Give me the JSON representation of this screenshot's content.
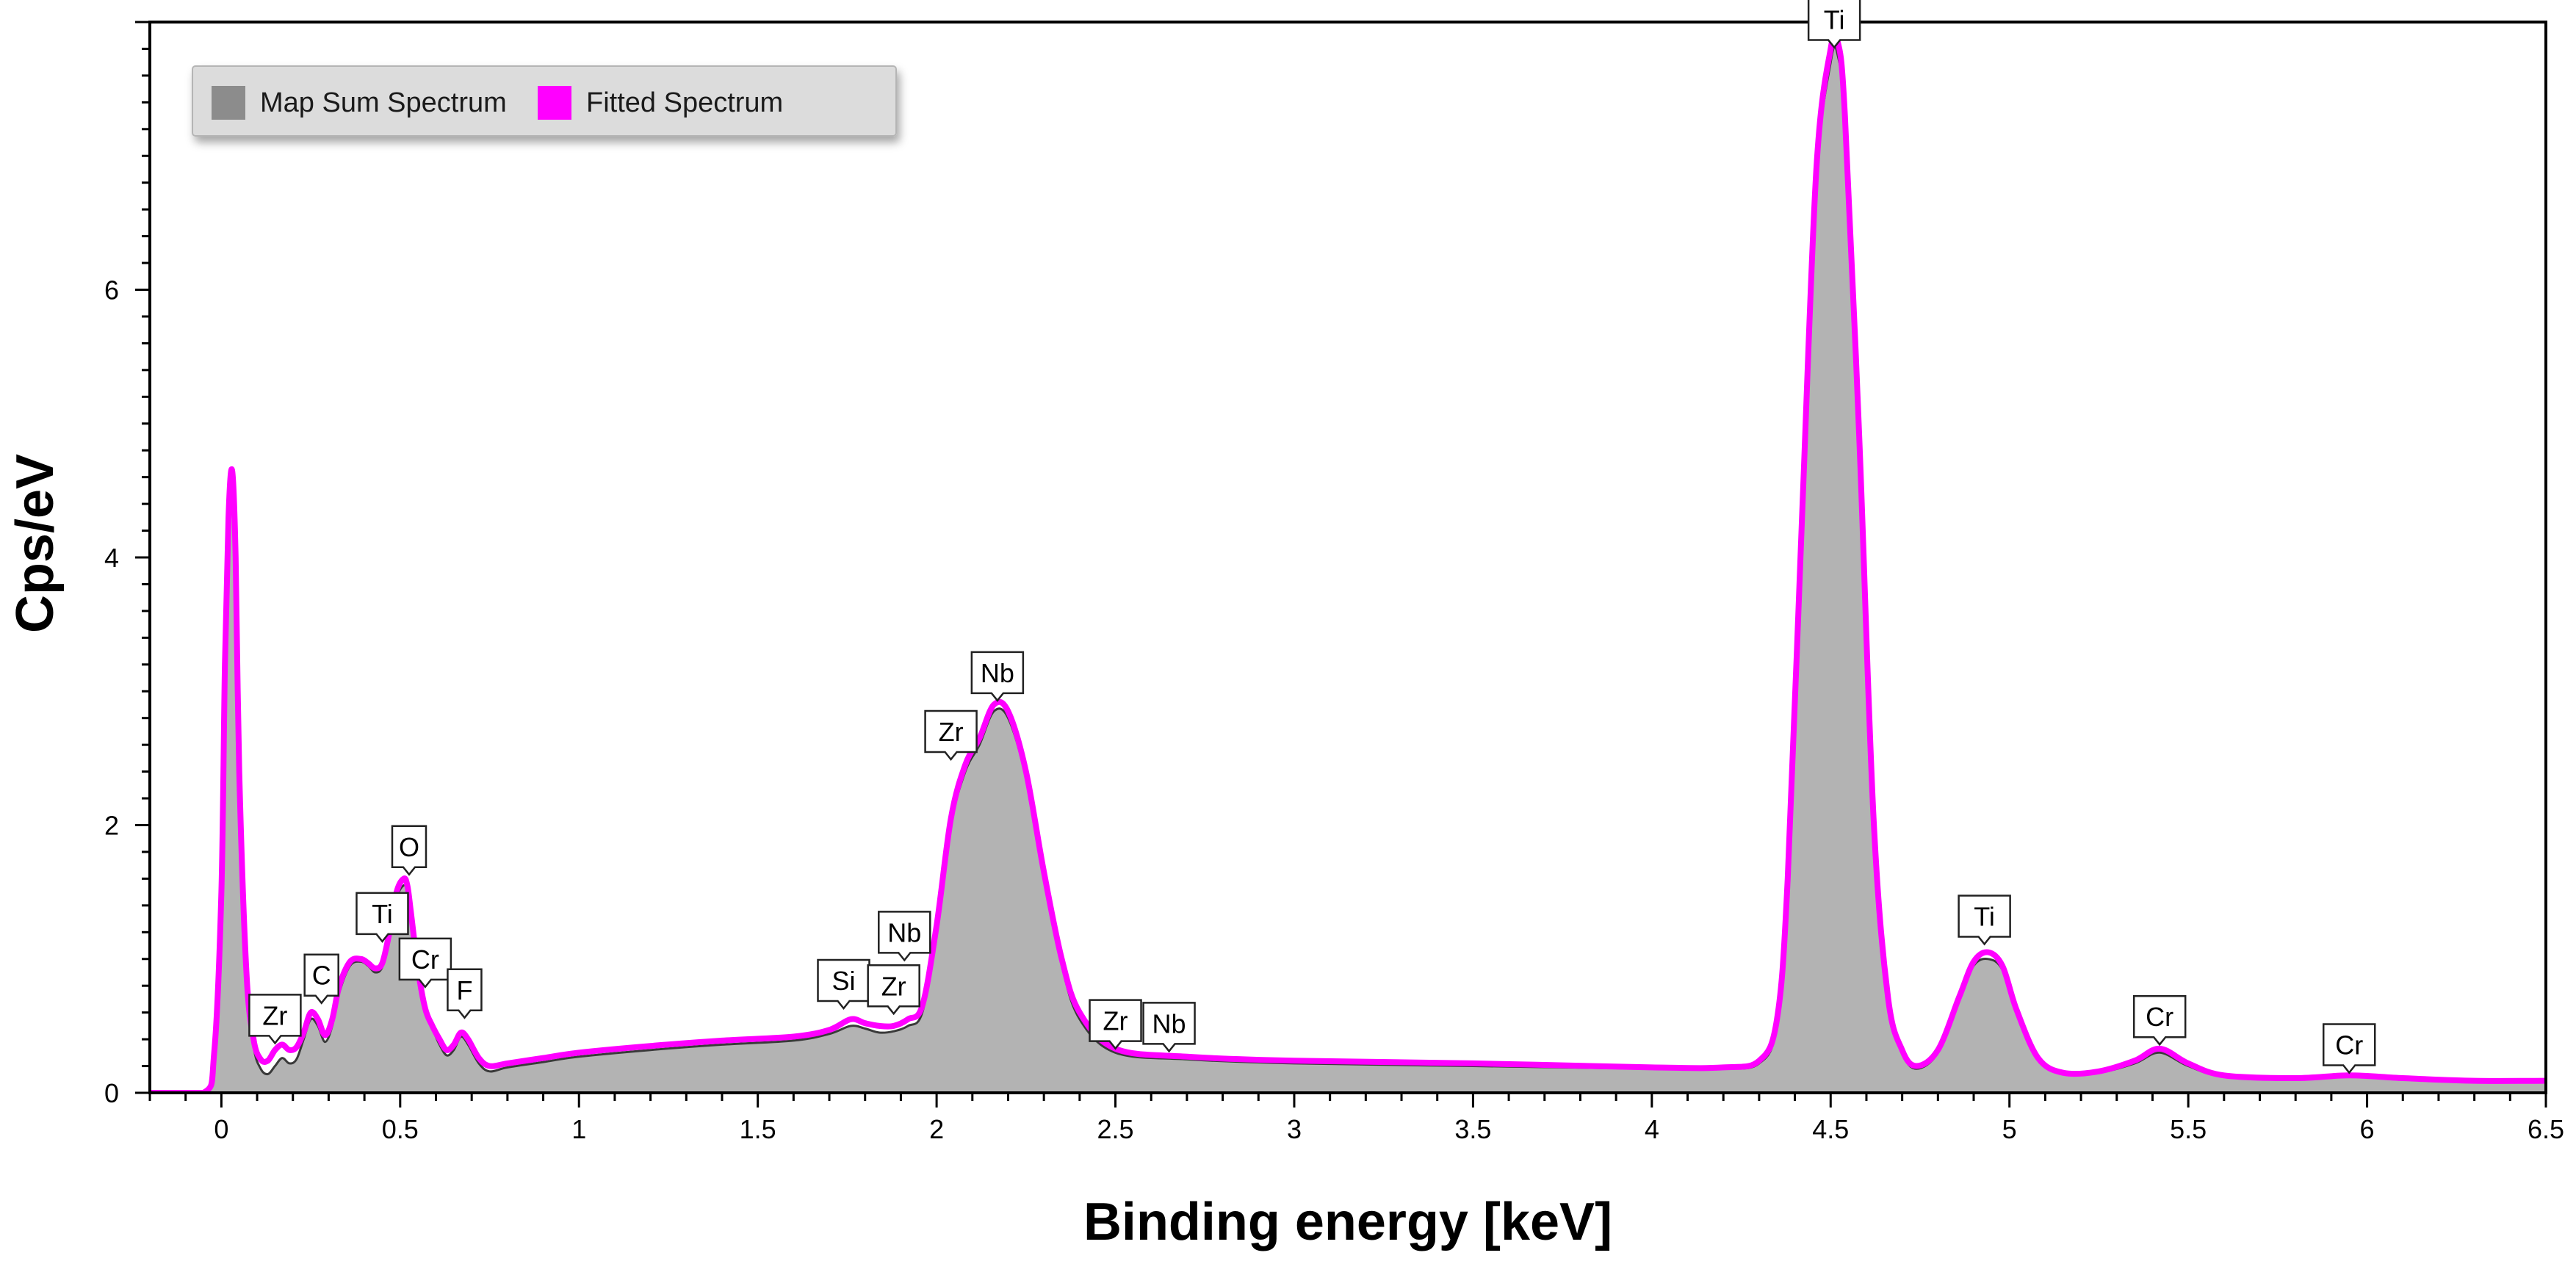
{
  "chart_data": {
    "type": "area",
    "title": "",
    "xlabel": "Binding energy [keV]",
    "ylabel": "Cps/eV",
    "xlim": [
      -0.2,
      6.5
    ],
    "ylim": [
      0,
      8
    ],
    "x_ticks": [
      {
        "value": 0,
        "label": "0"
      },
      {
        "value": 0.5,
        "label": "0.5"
      },
      {
        "value": 1,
        "label": "1"
      },
      {
        "value": 1.5,
        "label": "1.5"
      },
      {
        "value": 2,
        "label": "2"
      },
      {
        "value": 2.5,
        "label": "2.5"
      },
      {
        "value": 3,
        "label": "3"
      },
      {
        "value": 3.5,
        "label": "3.5"
      },
      {
        "value": 4,
        "label": "4"
      },
      {
        "value": 4.5,
        "label": "4.5"
      },
      {
        "value": 5,
        "label": "5"
      },
      {
        "value": 5.5,
        "label": "5.5"
      },
      {
        "value": 6,
        "label": "6"
      },
      {
        "value": 6.5,
        "label": "6.5"
      }
    ],
    "y_ticks": [
      {
        "value": 0,
        "label": "0"
      },
      {
        "value": 2,
        "label": "2"
      },
      {
        "value": 4,
        "label": "4"
      },
      {
        "value": 6,
        "label": "6"
      }
    ],
    "legend": {
      "placement": "top-left",
      "entries": [
        {
          "name": "Map Sum Spectrum",
          "color": "#8c8c8c"
        },
        {
          "name": "Fitted Spectrum",
          "color": "#ff00ff"
        }
      ]
    },
    "series": [
      {
        "name": "Map Sum Spectrum",
        "style": "filled-area",
        "fill_color": "#b3b3b3",
        "line_color": "#3a3a3a",
        "x": [
          -0.2,
          -0.05,
          -0.02,
          0.0,
          0.01,
          0.02,
          0.03,
          0.04,
          0.05,
          0.07,
          0.09,
          0.11,
          0.13,
          0.15,
          0.17,
          0.19,
          0.21,
          0.23,
          0.25,
          0.27,
          0.29,
          0.31,
          0.33,
          0.36,
          0.39,
          0.41,
          0.43,
          0.45,
          0.47,
          0.49,
          0.51,
          0.52,
          0.53,
          0.55,
          0.57,
          0.59,
          0.61,
          0.63,
          0.65,
          0.67,
          0.69,
          0.72,
          0.75,
          0.8,
          0.9,
          1.0,
          1.2,
          1.4,
          1.6,
          1.7,
          1.76,
          1.8,
          1.84,
          1.88,
          1.92,
          1.96,
          2.0,
          2.04,
          2.08,
          2.12,
          2.16,
          2.2,
          2.25,
          2.3,
          2.35,
          2.4,
          2.5,
          2.7,
          3.0,
          3.5,
          4.0,
          4.2,
          4.3,
          4.35,
          4.38,
          4.42,
          4.46,
          4.5,
          4.52,
          4.54,
          4.58,
          4.62,
          4.66,
          4.7,
          4.74,
          4.8,
          4.86,
          4.9,
          4.94,
          4.98,
          5.02,
          5.08,
          5.15,
          5.25,
          5.35,
          5.42,
          5.5,
          5.6,
          5.8,
          5.95,
          6.1,
          6.3,
          6.5
        ],
        "y": [
          0,
          0,
          0.3,
          1.5,
          3.2,
          4.3,
          4.65,
          4.0,
          2.4,
          0.9,
          0.35,
          0.18,
          0.14,
          0.2,
          0.26,
          0.22,
          0.25,
          0.4,
          0.55,
          0.5,
          0.38,
          0.5,
          0.75,
          0.95,
          0.98,
          0.95,
          0.9,
          0.94,
          1.15,
          1.45,
          1.55,
          1.5,
          1.3,
          0.88,
          0.6,
          0.48,
          0.36,
          0.28,
          0.32,
          0.42,
          0.36,
          0.22,
          0.16,
          0.19,
          0.23,
          0.27,
          0.32,
          0.36,
          0.39,
          0.44,
          0.5,
          0.48,
          0.45,
          0.46,
          0.5,
          0.6,
          1.2,
          2.0,
          2.4,
          2.6,
          2.85,
          2.8,
          2.35,
          1.6,
          0.95,
          0.55,
          0.3,
          0.25,
          0.22,
          0.2,
          0.18,
          0.18,
          0.22,
          0.5,
          1.5,
          4.2,
          6.8,
          7.7,
          7.75,
          7.2,
          4.8,
          2.0,
          0.7,
          0.3,
          0.18,
          0.3,
          0.7,
          0.95,
          1.0,
          0.92,
          0.6,
          0.25,
          0.14,
          0.15,
          0.22,
          0.3,
          0.2,
          0.12,
          0.1,
          0.12,
          0.1,
          0.08,
          0.08
        ]
      },
      {
        "name": "Fitted Spectrum",
        "style": "line",
        "line_color": "#ff00ff",
        "x": [
          -0.2,
          -0.05,
          -0.02,
          0.0,
          0.01,
          0.02,
          0.03,
          0.04,
          0.05,
          0.07,
          0.09,
          0.11,
          0.13,
          0.15,
          0.17,
          0.19,
          0.21,
          0.23,
          0.25,
          0.27,
          0.29,
          0.31,
          0.33,
          0.36,
          0.39,
          0.41,
          0.43,
          0.45,
          0.47,
          0.49,
          0.51,
          0.52,
          0.53,
          0.55,
          0.57,
          0.59,
          0.61,
          0.63,
          0.65,
          0.67,
          0.69,
          0.72,
          0.75,
          0.8,
          0.9,
          1.0,
          1.2,
          1.4,
          1.6,
          1.7,
          1.76,
          1.8,
          1.84,
          1.88,
          1.92,
          1.96,
          2.0,
          2.04,
          2.08,
          2.12,
          2.16,
          2.2,
          2.25,
          2.3,
          2.35,
          2.4,
          2.5,
          2.7,
          3.0,
          3.5,
          4.0,
          4.2,
          4.3,
          4.35,
          4.38,
          4.42,
          4.46,
          4.5,
          4.52,
          4.54,
          4.58,
          4.62,
          4.66,
          4.7,
          4.74,
          4.8,
          4.86,
          4.9,
          4.94,
          4.98,
          5.02,
          5.08,
          5.15,
          5.25,
          5.35,
          5.42,
          5.5,
          5.6,
          5.8,
          5.95,
          6.1,
          6.3,
          6.5
        ],
        "y": [
          0,
          0,
          0.3,
          1.5,
          3.2,
          4.3,
          4.65,
          4.0,
          2.4,
          0.9,
          0.4,
          0.25,
          0.24,
          0.32,
          0.36,
          0.32,
          0.34,
          0.45,
          0.6,
          0.55,
          0.43,
          0.55,
          0.8,
          0.98,
          1.0,
          0.97,
          0.93,
          0.97,
          1.2,
          1.5,
          1.6,
          1.55,
          1.35,
          0.92,
          0.63,
          0.5,
          0.4,
          0.32,
          0.36,
          0.45,
          0.4,
          0.26,
          0.2,
          0.22,
          0.26,
          0.3,
          0.35,
          0.39,
          0.42,
          0.47,
          0.55,
          0.52,
          0.5,
          0.5,
          0.55,
          0.65,
          1.25,
          2.05,
          2.45,
          2.65,
          2.9,
          2.85,
          2.4,
          1.65,
          1.0,
          0.6,
          0.33,
          0.27,
          0.24,
          0.22,
          0.19,
          0.19,
          0.24,
          0.55,
          1.6,
          4.3,
          6.9,
          7.8,
          7.85,
          7.3,
          4.9,
          2.05,
          0.72,
          0.32,
          0.2,
          0.32,
          0.72,
          0.98,
          1.05,
          0.95,
          0.62,
          0.26,
          0.15,
          0.16,
          0.24,
          0.33,
          0.22,
          0.13,
          0.11,
          0.13,
          0.11,
          0.09,
          0.09
        ]
      }
    ],
    "peak_labels": [
      {
        "label": "Ti",
        "x": 4.51,
        "y": 7.8
      },
      {
        "label": "Nb",
        "x": 2.17,
        "y": 2.92
      },
      {
        "label": "Zr",
        "x": 2.04,
        "y": 2.48
      },
      {
        "label": "O",
        "x": 0.525,
        "y": 1.62
      },
      {
        "label": "Ti",
        "x": 0.45,
        "y": 1.12
      },
      {
        "label": "Cr",
        "x": 0.57,
        "y": 0.78
      },
      {
        "label": "F",
        "x": 0.68,
        "y": 0.55
      },
      {
        "label": "C",
        "x": 0.28,
        "y": 0.66
      },
      {
        "label": "Zr",
        "x": 0.15,
        "y": 0.36
      },
      {
        "label": "Si",
        "x": 1.74,
        "y": 0.62
      },
      {
        "label": "Zr",
        "x": 1.88,
        "y": 0.58
      },
      {
        "label": "Nb",
        "x": 1.91,
        "y": 0.98
      },
      {
        "label": "Zr",
        "x": 2.5,
        "y": 0.32
      },
      {
        "label": "Nb",
        "x": 2.65,
        "y": 0.3
      },
      {
        "label": "Ti",
        "x": 4.93,
        "y": 1.1
      },
      {
        "label": "Cr",
        "x": 5.42,
        "y": 0.35
      },
      {
        "label": "Cr",
        "x": 5.95,
        "y": 0.14
      }
    ]
  }
}
